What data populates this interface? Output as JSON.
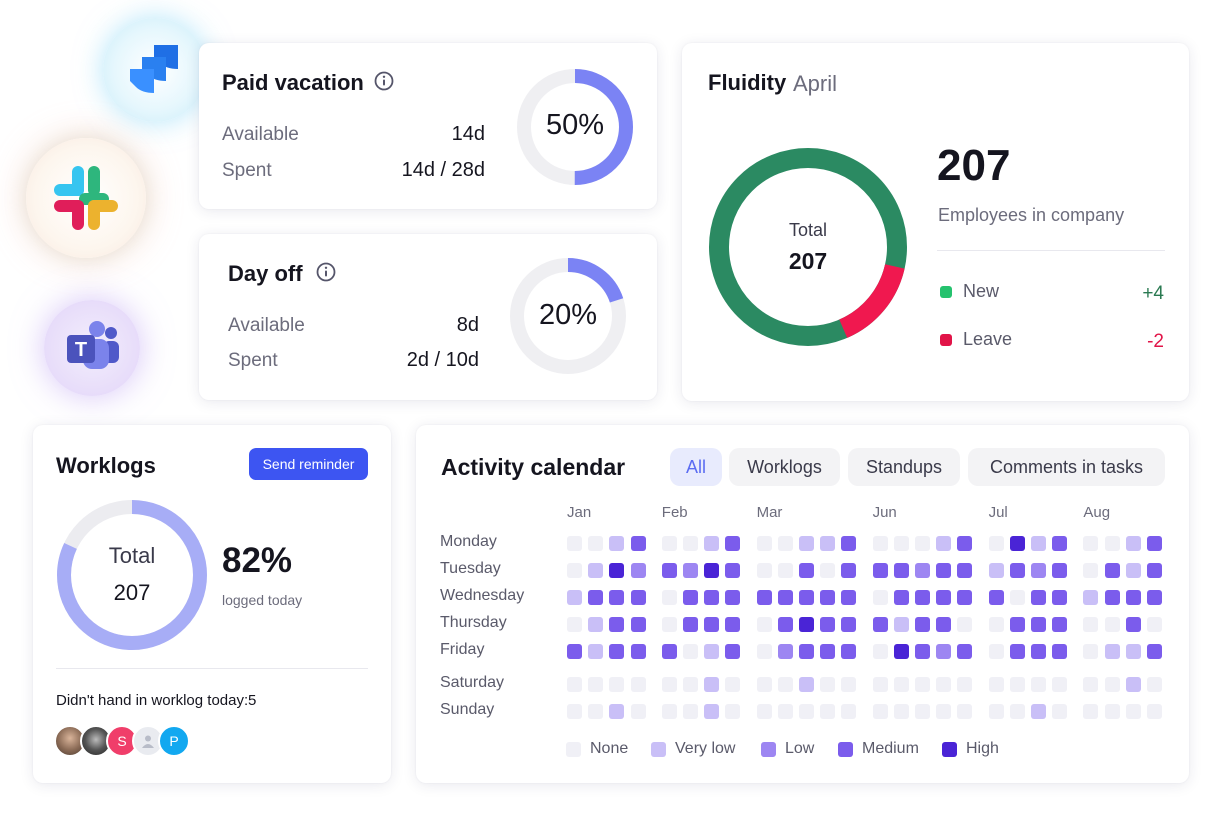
{
  "integrations": [
    {
      "name": "Jira",
      "icon": "jira-logo-icon"
    },
    {
      "name": "Slack",
      "icon": "slack-logo-icon"
    },
    {
      "name": "Teams",
      "icon": "teams-logo-icon"
    }
  ],
  "paid_vacation": {
    "title": "Paid vacation",
    "available_label": "Available",
    "available_value": "14d",
    "spent_label": "Spent",
    "spent_value": "14d / 28d",
    "percent_label": "50%",
    "percent": 50
  },
  "day_off": {
    "title": "Day off",
    "available_label": "Available",
    "available_value": "8d",
    "spent_label": "Spent",
    "spent_value": "2d / 10d",
    "percent_label": "20%",
    "percent": 20
  },
  "fluidity": {
    "title": "Fluidity",
    "month": "April",
    "total_label": "Total",
    "total_value": "207",
    "big_number": "207",
    "subtitle": "Employees in company",
    "new_label": "New",
    "new_value": "+4",
    "leave_label": "Leave",
    "leave_value": "-2",
    "stay_fraction": 0.85,
    "colors": {
      "stay": "#2b8a62",
      "leave": "#f0184f",
      "new_dot": "#25c26e",
      "leave_dot": "#e11448",
      "new_text": "#2b7a52",
      "leave_text": "#e11448"
    }
  },
  "worklogs": {
    "title": "Worklogs",
    "button_label": "Send reminder",
    "total_label": "Total",
    "total_value": "207",
    "percent_label": "82%",
    "percent_sub": "logged today",
    "percent": 82,
    "missing_label": "Didn't hand in worklog today:",
    "missing_count": "5",
    "avatars": [
      {
        "kind": "photo",
        "color": "#8a6a55"
      },
      {
        "kind": "photo",
        "color": "#3a3a3a"
      },
      {
        "kind": "letter",
        "letter": "S",
        "color": "#f03e6a"
      },
      {
        "kind": "placeholder",
        "color": "#e4e6ec"
      },
      {
        "kind": "letter",
        "letter": "P",
        "color": "#12a8f0"
      }
    ]
  },
  "activity": {
    "title": "Activity calendar",
    "tabs": [
      {
        "label": "All",
        "active": true
      },
      {
        "label": "Worklogs",
        "active": false
      },
      {
        "label": "Standups",
        "active": false
      },
      {
        "label": "Comments in tasks",
        "active": false
      }
    ],
    "months": [
      "Jan",
      "Feb",
      "Mar",
      "Jun",
      "Jul",
      "Aug"
    ],
    "days": [
      "Monday",
      "Tuesday",
      "Wednesday",
      "Thursday",
      "Friday",
      "Saturday",
      "Sunday"
    ],
    "legend": [
      {
        "label": "None",
        "level": 0
      },
      {
        "label": "Very low",
        "level": 1
      },
      {
        "label": "Low",
        "level": 2
      },
      {
        "label": "Medium",
        "level": 3
      },
      {
        "label": "High",
        "level": 4
      }
    ],
    "level_colors": [
      "#f0f0f6",
      "#c9bff7",
      "#9d86f2",
      "#7b5cec",
      "#4a24d6"
    ],
    "grid": [
      [
        0,
        0,
        1,
        3,
        0,
        0,
        1,
        3,
        0,
        0,
        1,
        1,
        3,
        0,
        0,
        0,
        1,
        3,
        0,
        4,
        1,
        3,
        0,
        0,
        1,
        3
      ],
      [
        0,
        1,
        4,
        2,
        3,
        2,
        4,
        3,
        0,
        0,
        3,
        0,
        3,
        3,
        3,
        2,
        3,
        3,
        1,
        3,
        2,
        3,
        0,
        3,
        1,
        3
      ],
      [
        1,
        3,
        3,
        3,
        0,
        3,
        3,
        3,
        3,
        3,
        3,
        3,
        3,
        0,
        3,
        3,
        3,
        3,
        3,
        0,
        3,
        3,
        1,
        3,
        3,
        3
      ],
      [
        0,
        1,
        3,
        3,
        0,
        3,
        3,
        3,
        0,
        3,
        4,
        3,
        3,
        3,
        1,
        3,
        3,
        0,
        0,
        3,
        3,
        3,
        0,
        0,
        3,
        0
      ],
      [
        3,
        1,
        3,
        3,
        3,
        0,
        1,
        3,
        0,
        2,
        3,
        3,
        3,
        0,
        4,
        3,
        2,
        3,
        0,
        3,
        3,
        3,
        0,
        1,
        1,
        3
      ],
      [
        0,
        0,
        0,
        0,
        0,
        0,
        1,
        0,
        0,
        0,
        1,
        0,
        0,
        0,
        0,
        0,
        0,
        0,
        0,
        0,
        0,
        0,
        0,
        0,
        1,
        0
      ],
      [
        0,
        0,
        1,
        0,
        0,
        0,
        1,
        0,
        0,
        0,
        0,
        0,
        0,
        0,
        0,
        0,
        0,
        0,
        0,
        0,
        1,
        0,
        0,
        0,
        0,
        0
      ]
    ]
  }
}
